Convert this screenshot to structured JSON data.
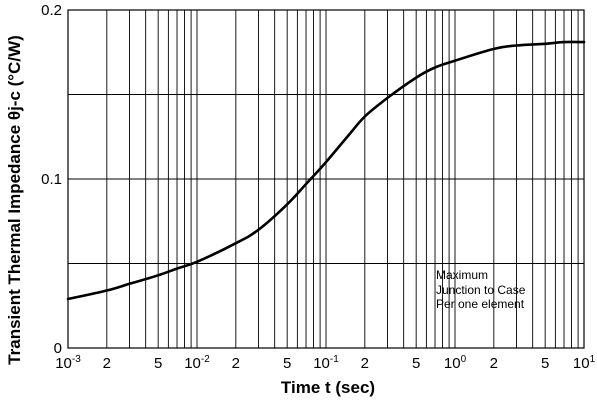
{
  "chart_data": {
    "type": "line",
    "ylabel": "Transient Thermal Impedance θj-c (°C/W)",
    "xlabel": "Time t (sec)",
    "x_scale": "log",
    "xlim": [
      0.001,
      10
    ],
    "ylim": [
      0,
      0.2
    ],
    "grid": true,
    "y_ticks": [
      {
        "value": 0,
        "label": "0"
      },
      {
        "value": 0.1,
        "label": "0.1"
      },
      {
        "value": 0.2,
        "label": "0.2"
      }
    ],
    "x_ticks": [
      {
        "value": 0.001,
        "label": "10-3"
      },
      {
        "value": 0.002,
        "label": "2"
      },
      {
        "value": 0.005,
        "label": "5"
      },
      {
        "value": 0.01,
        "label": "10-2"
      },
      {
        "value": 0.02,
        "label": "2"
      },
      {
        "value": 0.05,
        "label": "5"
      },
      {
        "value": 0.1,
        "label": "10-1"
      },
      {
        "value": 0.2,
        "label": "2"
      },
      {
        "value": 0.5,
        "label": "5"
      },
      {
        "value": 1,
        "label": "100"
      },
      {
        "value": 2,
        "label": "2"
      },
      {
        "value": 5,
        "label": "5"
      },
      {
        "value": 10,
        "label": "101"
      }
    ],
    "series": [
      {
        "x": [
          0.001,
          0.002,
          0.003,
          0.005,
          0.007,
          0.01,
          0.02,
          0.03,
          0.05,
          0.07,
          0.1,
          0.15,
          0.2,
          0.3,
          0.5,
          0.7,
          1,
          2,
          3,
          5,
          7,
          10
        ],
        "y": [
          0.029,
          0.034,
          0.038,
          0.043,
          0.047,
          0.051,
          0.062,
          0.07,
          0.085,
          0.097,
          0.11,
          0.126,
          0.137,
          0.148,
          0.16,
          0.166,
          0.17,
          0.177,
          0.179,
          0.18,
          0.181,
          0.181
        ]
      }
    ],
    "annotation": [
      "Maximum",
      "Junction to Case",
      "Per one element"
    ],
    "colors": {
      "axis": "#000000",
      "grid": "#000000",
      "line": "#000000"
    }
  }
}
